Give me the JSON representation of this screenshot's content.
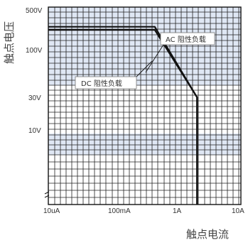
{
  "chart_data": {
    "type": "line",
    "ylabel": "触点电压",
    "xlabel": "触点电流",
    "x_tick_labels": [
      "10uA",
      "100mA",
      "1A",
      "10A"
    ],
    "y_tick_labels": [
      "500V",
      "100V",
      "30V",
      "10V"
    ],
    "series": [
      {
        "name": "AC 阻性负载",
        "points": [
          [
            0.001,
            250
          ],
          [
            0.4,
            250
          ],
          [
            2,
            30
          ],
          [
            2,
            0
          ]
        ]
      },
      {
        "name": "DC 阻性负载",
        "points": [
          [
            0.001,
            220
          ],
          [
            0.4,
            220
          ],
          [
            2,
            30
          ],
          [
            2,
            0
          ]
        ]
      }
    ],
    "colors": {
      "band_fill": "#dfe7f4",
      "band_fill_dark": "#c9d6ec",
      "grid_minor": "#222222",
      "grid_major": "#111111",
      "curve": "#111111",
      "label_box_border": "#777777"
    },
    "grid": true
  }
}
